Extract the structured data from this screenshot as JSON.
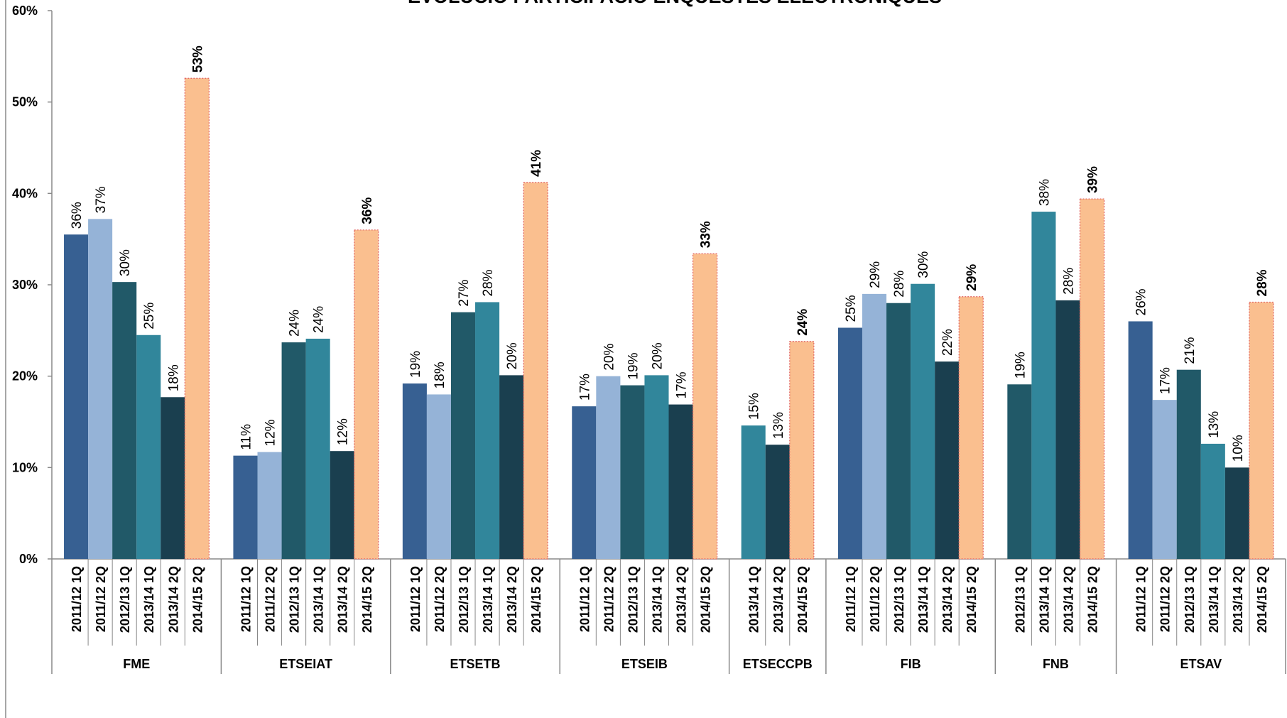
{
  "chart_data": {
    "type": "grouped-bar",
    "title": "EVOLUCIÓ PARTICIPACIÓ ENQUESTES ELECTRÒNIQUES",
    "ylim": [
      0,
      60
    ],
    "yticks": [
      {
        "value": 0,
        "label": "0%"
      },
      {
        "value": 10,
        "label": "10%"
      },
      {
        "value": 20,
        "label": "20%"
      },
      {
        "value": 30,
        "label": "30%"
      },
      {
        "value": 40,
        "label": "40%"
      },
      {
        "value": 50,
        "label": "50%"
      },
      {
        "value": 60,
        "label": "60%"
      }
    ],
    "grid": false,
    "colors": {
      "2011/12 1Q": "#376092",
      "2011/12 2Q": "#95b3d7",
      "2012/13 1Q": "#215968",
      "2013/14 1Q": "#31869b",
      "2013/14 2Q": "#1a3f4f",
      "2014/15 2Q": "#fabf8f"
    },
    "highlight_category": "2014/15 2Q",
    "highlight_border": "#e06060",
    "groups": [
      {
        "name": "FME",
        "categories": [
          "2011/12 1Q",
          "2011/12 2Q",
          "2012/13 1Q",
          "2013/14 1Q",
          "2013/14 2Q",
          "2014/15 2Q"
        ],
        "values": [
          35.5,
          37.2,
          30.3,
          24.5,
          17.7,
          52.6
        ],
        "value_labels": [
          "36%",
          "37%",
          "30%",
          "25%",
          "18%",
          "53%"
        ]
      },
      {
        "name": "ETSEIAT",
        "categories": [
          "2011/12 1Q",
          "2011/12 2Q",
          "2012/13 1Q",
          "2013/14 1Q",
          "2013/14 2Q",
          "2014/15 2Q"
        ],
        "values": [
          11.3,
          11.7,
          23.7,
          24.1,
          11.8,
          36.0
        ],
        "value_labels": [
          "11%",
          "12%",
          "24%",
          "24%",
          "12%",
          "36%"
        ]
      },
      {
        "name": "ETSETB",
        "categories": [
          "2011/12 1Q",
          "2011/12 2Q",
          "2012/13 1Q",
          "2013/14 1Q",
          "2013/14 2Q",
          "2014/15 2Q"
        ],
        "values": [
          19.2,
          18.0,
          27.0,
          28.1,
          20.1,
          41.2
        ],
        "value_labels": [
          "19%",
          "18%",
          "27%",
          "28%",
          "20%",
          "41%"
        ]
      },
      {
        "name": "ETSEIB",
        "categories": [
          "2011/12 1Q",
          "2011/12 2Q",
          "2012/13 1Q",
          "2013/14 1Q",
          "2013/14 2Q",
          "2014/15 2Q"
        ],
        "values": [
          16.7,
          20.0,
          19.0,
          20.1,
          16.9,
          33.4
        ],
        "value_labels": [
          "17%",
          "20%",
          "19%",
          "20%",
          "17%",
          "33%"
        ]
      },
      {
        "name": "ETSECCPB",
        "categories": [
          "2013/14 1Q",
          "2013/14 2Q",
          "2014/15 2Q"
        ],
        "values": [
          14.6,
          12.5,
          23.8
        ],
        "value_labels": [
          "15%",
          "13%",
          "24%"
        ]
      },
      {
        "name": "FIB",
        "categories": [
          "2011/12 1Q",
          "2011/12 2Q",
          "2012/13 1Q",
          "2013/14 1Q",
          "2013/14 2Q",
          "2014/15 2Q"
        ],
        "values": [
          25.3,
          29.0,
          28.0,
          30.1,
          21.6,
          28.7
        ],
        "value_labels": [
          "25%",
          "29%",
          "28%",
          "30%",
          "22%",
          "29%"
        ]
      },
      {
        "name": "FNB",
        "categories": [
          "2012/13 1Q",
          "2013/14 1Q",
          "2013/14 2Q",
          "2014/15 2Q"
        ],
        "values": [
          19.1,
          38.0,
          28.3,
          39.4
        ],
        "value_labels": [
          "19%",
          "38%",
          "28%",
          "39%"
        ]
      },
      {
        "name": "ETSAV",
        "categories": [
          "2011/12 1Q",
          "2011/12 2Q",
          "2012/13 1Q",
          "2013/14 1Q",
          "2013/14 2Q",
          "2014/15 2Q"
        ],
        "values": [
          26.0,
          17.4,
          20.7,
          12.6,
          10.0,
          28.1
        ],
        "value_labels": [
          "26%",
          "17%",
          "21%",
          "13%",
          "10%",
          "28%"
        ]
      }
    ]
  }
}
